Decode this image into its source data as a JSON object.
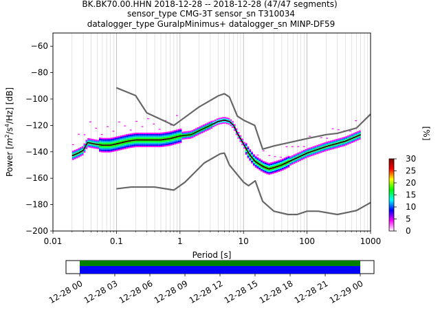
{
  "title_lines": [
    "BK.BK70.00.HHN   2018-12-28 -- 2018-12-28  (47/47 segments)",
    "sensor_type CMG-3T sensor_sn T310034",
    "datalogger_type GuralpMinimus+ datalogger_sn MINP-DF59"
  ],
  "colors": {
    "model_curves": "#666666",
    "mean_curve": "#000000",
    "coverage_primary": "#0000ff",
    "coverage_secondary": "#008000"
  },
  "chart_data": [
    {
      "type": "heatmap",
      "title": "BK.BK70.00.HHN   2018-12-28 -- 2018-12-28  (47/47 segments)",
      "xlabel": "Period [s]",
      "ylabel": "Power [m²/s⁴/Hz] [dB]",
      "ylabel_parts": {
        "prefix": "Power [",
        "m": "m",
        "exp2": "2",
        "mid": "/s",
        "exp4": "4",
        "suffix": "/Hz] [dB]"
      },
      "x_scale": "log",
      "xlim": [
        0.01,
        1000
      ],
      "ylim": [
        -200,
        -50
      ],
      "x_ticks": [
        {
          "value": 0.01,
          "label": "0.01"
        },
        {
          "value": 0.1,
          "label": "0.1"
        },
        {
          "value": 1,
          "label": "1"
        },
        {
          "value": 10,
          "label": "10"
        },
        {
          "value": 100,
          "label": "100"
        },
        {
          "value": 1000,
          "label": "1000"
        }
      ],
      "y_ticks": [
        {
          "value": -60,
          "label": "−60"
        },
        {
          "value": -80,
          "label": "−80"
        },
        {
          "value": -100,
          "label": "−100"
        },
        {
          "value": -120,
          "label": "−120"
        },
        {
          "value": -140,
          "label": "−140"
        },
        {
          "value": -160,
          "label": "−160"
        },
        {
          "value": -180,
          "label": "−180"
        },
        {
          "value": -200,
          "label": "−200"
        }
      ],
      "grid": true,
      "colorbar": {
        "label": "[%]",
        "range": [
          0,
          30
        ],
        "ticks": [
          {
            "value": 0,
            "label": "0"
          },
          {
            "value": 5,
            "label": "5"
          },
          {
            "value": 10,
            "label": "10"
          },
          {
            "value": 15,
            "label": "15"
          },
          {
            "value": 20,
            "label": "20"
          },
          {
            "value": 25,
            "label": "25"
          },
          {
            "value": 30,
            "label": "30"
          }
        ],
        "colors": [
          "#ffffff",
          "#ff00ff",
          "#0000ff",
          "#00ffff",
          "#00ff00",
          "#ffff00",
          "#ff0000",
          "#800000"
        ]
      },
      "series": [
        {
          "period": [
            0.1,
            0.2,
            0.3,
            0.8,
            2.0,
            4.0,
            5.0,
            6.0,
            8.0,
            10.0,
            15.0,
            20.0,
            30.0,
            100.0,
            200.0,
            300.0,
            600.0,
            1000.0
          ],
          "values": [
            -91.5,
            -97.4,
            -110.5,
            -120.0,
            -106.0,
            -97.6,
            -96.0,
            -98.5,
            -113.0,
            -116.0,
            -120.0,
            -138.0,
            -135.6,
            -130.0,
            -127.0,
            -126.0,
            -122.0,
            -111.5
          ]
        },
        {
          "period": [
            0.1,
            0.17,
            0.4,
            0.8,
            1.2,
            2.4,
            4.3,
            5.0,
            6.0,
            10.0,
            12.0,
            15.3,
            20.0,
            30.0,
            50.0,
            70.0,
            100.0,
            150.0,
            300.0,
            600.0,
            1000.0
          ],
          "values": [
            -168.0,
            -166.7,
            -166.7,
            -169.0,
            -163.0,
            -148.5,
            -141.5,
            -141.0,
            -150.0,
            -163.0,
            -165.7,
            -162.0,
            -177.5,
            -185.0,
            -187.5,
            -187.5,
            -185.0,
            -185.0,
            -187.5,
            -184.5,
            -178.5
          ]
        },
        {
          "period": [
            0.02,
            0.025,
            0.03,
            0.035,
            0.045,
            0.06,
            0.08,
            0.1,
            0.15,
            0.2,
            0.3,
            0.5,
            0.7,
            1.0,
            1.5,
            2.0,
            3.0,
            4.0,
            5.0,
            6.0,
            7.0,
            8.0,
            10.0,
            12.0,
            15.0,
            20.0,
            25.0,
            30.0,
            40.0,
            60.0,
            100.0,
            200.0,
            400.0,
            700.0
          ],
          "values": [
            -143,
            -141,
            -139,
            -133,
            -134,
            -135,
            -135,
            -134,
            -132,
            -131,
            -131,
            -131,
            -130,
            -128,
            -127,
            -124,
            -120,
            -117,
            -116,
            -117,
            -120,
            -126,
            -134,
            -141,
            -147,
            -151,
            -153,
            -152,
            -150,
            -146,
            -141,
            -136,
            -132,
            -127
          ]
        }
      ],
      "time_axis": {
        "tick_labels": [
          "12-28 00",
          "12-28 03",
          "12-28 06",
          "12-28 09",
          "12-28 12",
          "12-28 15",
          "12-28 18",
          "12-28 21",
          "12-29 00"
        ]
      }
    }
  ]
}
